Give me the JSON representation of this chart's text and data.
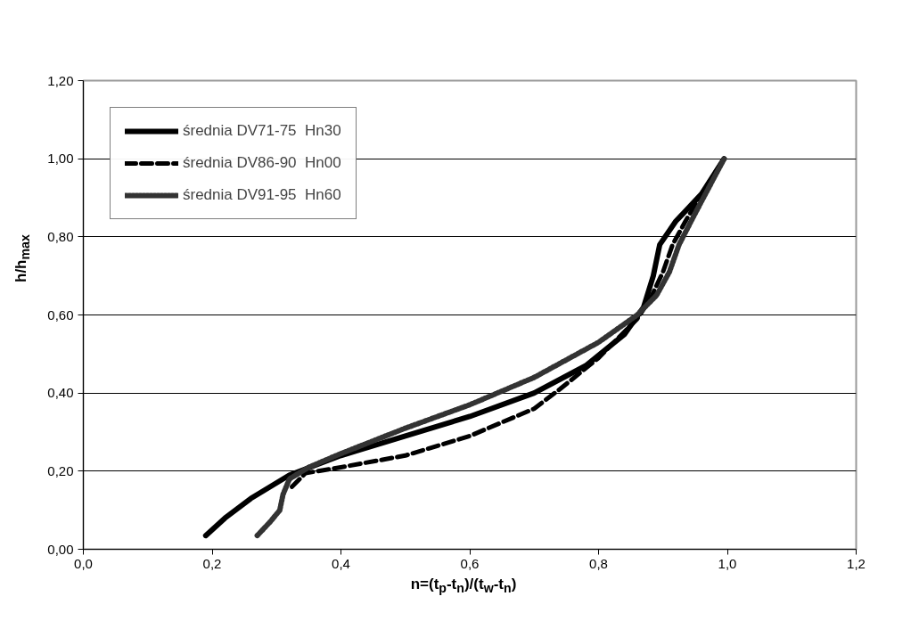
{
  "chart_data": {
    "type": "line",
    "xlabel": "n=(t$_{p}$-t$_{n}$)/(t$_{w}$-t$_{n}$)",
    "ylabel": "h/h$_{max}$",
    "series": [
      {
        "name": "średnia DV71-75  Hn30",
        "color": "#000000",
        "line_style": "solid",
        "x": [
          0.19,
          0.22,
          0.26,
          0.32,
          0.4,
          0.5,
          0.6,
          0.7,
          0.78,
          0.84,
          0.87,
          0.885,
          0.895,
          0.92,
          0.96,
          0.995
        ],
        "values": [
          0.035,
          0.08,
          0.13,
          0.19,
          0.24,
          0.29,
          0.34,
          0.4,
          0.47,
          0.55,
          0.62,
          0.7,
          0.78,
          0.84,
          0.91,
          1.0
        ]
      },
      {
        "name": "średnia DV86-90  Hn00",
        "color": "#000000",
        "line_style": "dashed",
        "x": [
          0.324,
          0.345,
          0.4,
          0.5,
          0.6,
          0.7,
          0.74,
          0.8,
          0.86,
          0.88,
          0.9,
          0.915,
          0.935,
          0.96,
          0.995
        ],
        "values": [
          0.16,
          0.195,
          0.21,
          0.24,
          0.29,
          0.36,
          0.41,
          0.49,
          0.59,
          0.64,
          0.71,
          0.78,
          0.84,
          0.91,
          1.0
        ]
      },
      {
        "name": "średnia DV91-95  Hn60",
        "color": "#333333",
        "line_style": "dotted",
        "x": [
          0.27,
          0.29,
          0.305,
          0.31,
          0.32,
          0.35,
          0.4,
          0.5,
          0.6,
          0.7,
          0.8,
          0.86,
          0.89,
          0.91,
          0.925,
          0.95,
          0.995
        ],
        "values": [
          0.035,
          0.07,
          0.1,
          0.14,
          0.18,
          0.21,
          0.245,
          0.31,
          0.37,
          0.44,
          0.53,
          0.6,
          0.65,
          0.71,
          0.78,
          0.86,
          1.0
        ]
      }
    ],
    "xlim": [
      0,
      1.2
    ],
    "xticks": [
      {
        "value": 0,
        "label": "0,0"
      },
      {
        "value": 0.2,
        "label": "0,2"
      },
      {
        "value": 0.4,
        "label": "0,4"
      },
      {
        "value": 0.6,
        "label": "0,6"
      },
      {
        "value": 0.8,
        "label": "0,8"
      },
      {
        "value": 1.0,
        "label": "1,0"
      },
      {
        "value": 1.2,
        "label": "1,2"
      }
    ],
    "ylim": [
      0,
      1.2
    ],
    "yticks": [
      {
        "value": 0,
        "label": "0,00"
      },
      {
        "value": 0.2,
        "label": "0,20"
      },
      {
        "value": 0.4,
        "label": "0,40"
      },
      {
        "value": 0.6,
        "label": "0,60"
      },
      {
        "value": 0.8,
        "label": "0,80"
      },
      {
        "value": 1.0,
        "label": "1,00"
      },
      {
        "value": 1.2,
        "label": "1,20"
      }
    ],
    "grid": "y",
    "legend": "top left",
    "marker": "none"
  }
}
